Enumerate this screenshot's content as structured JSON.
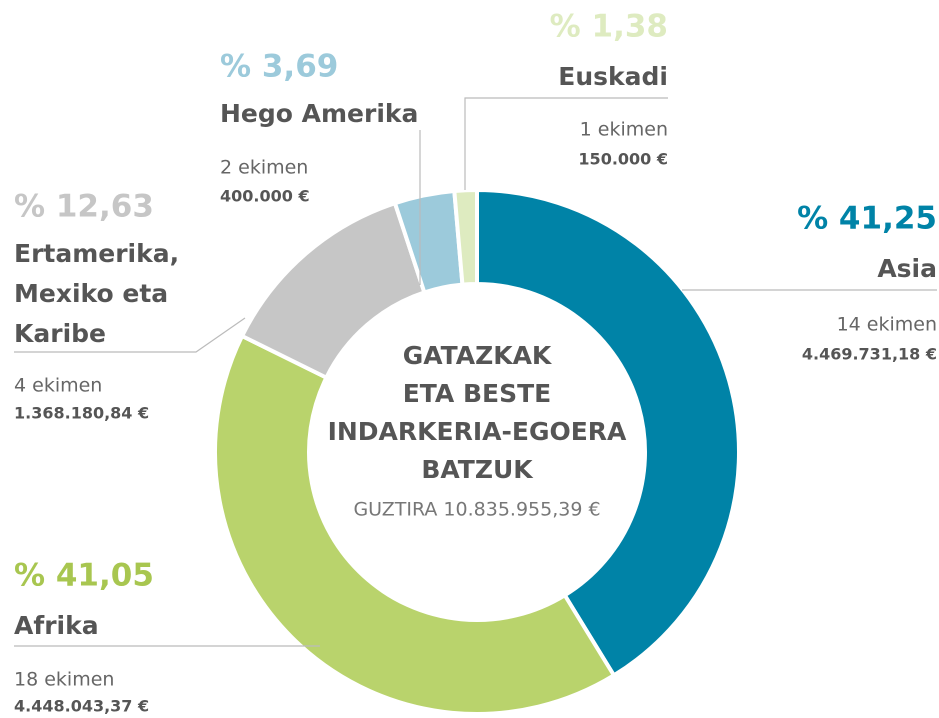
{
  "chart_data": {
    "type": "donut",
    "title": [
      "GATAZKAK",
      "ETA BESTE",
      "INDARKERIA-EGOERA",
      "BATZUK"
    ],
    "subtitle": "GUZTIRA 10.835.955,39 €",
    "categories": [
      "Asia",
      "Afrika",
      "Ertamerika, Mexiko eta Karibe",
      "Hego Amerika",
      "Euskadi"
    ],
    "values": [
      41.25,
      41.05,
      12.63,
      3.69,
      1.38
    ],
    "value_labels": [
      "% 41,25",
      "% 41,05",
      "% 12,63",
      "% 3,69",
      "% 1,38"
    ],
    "colors": [
      "#0083a7",
      "#b9d36c",
      "#c6c6c6",
      "#9ccadb",
      "#deebc0"
    ],
    "initiatives": [
      "14 ekimen",
      "18 ekimen",
      "4 ekimen",
      "2 ekimen",
      "1 ekimen"
    ],
    "amounts": [
      "4.469.731,18 €",
      "4.448.043,37 €",
      "1.368.180,84 €",
      "400.000 €",
      "150.000 €"
    ]
  }
}
